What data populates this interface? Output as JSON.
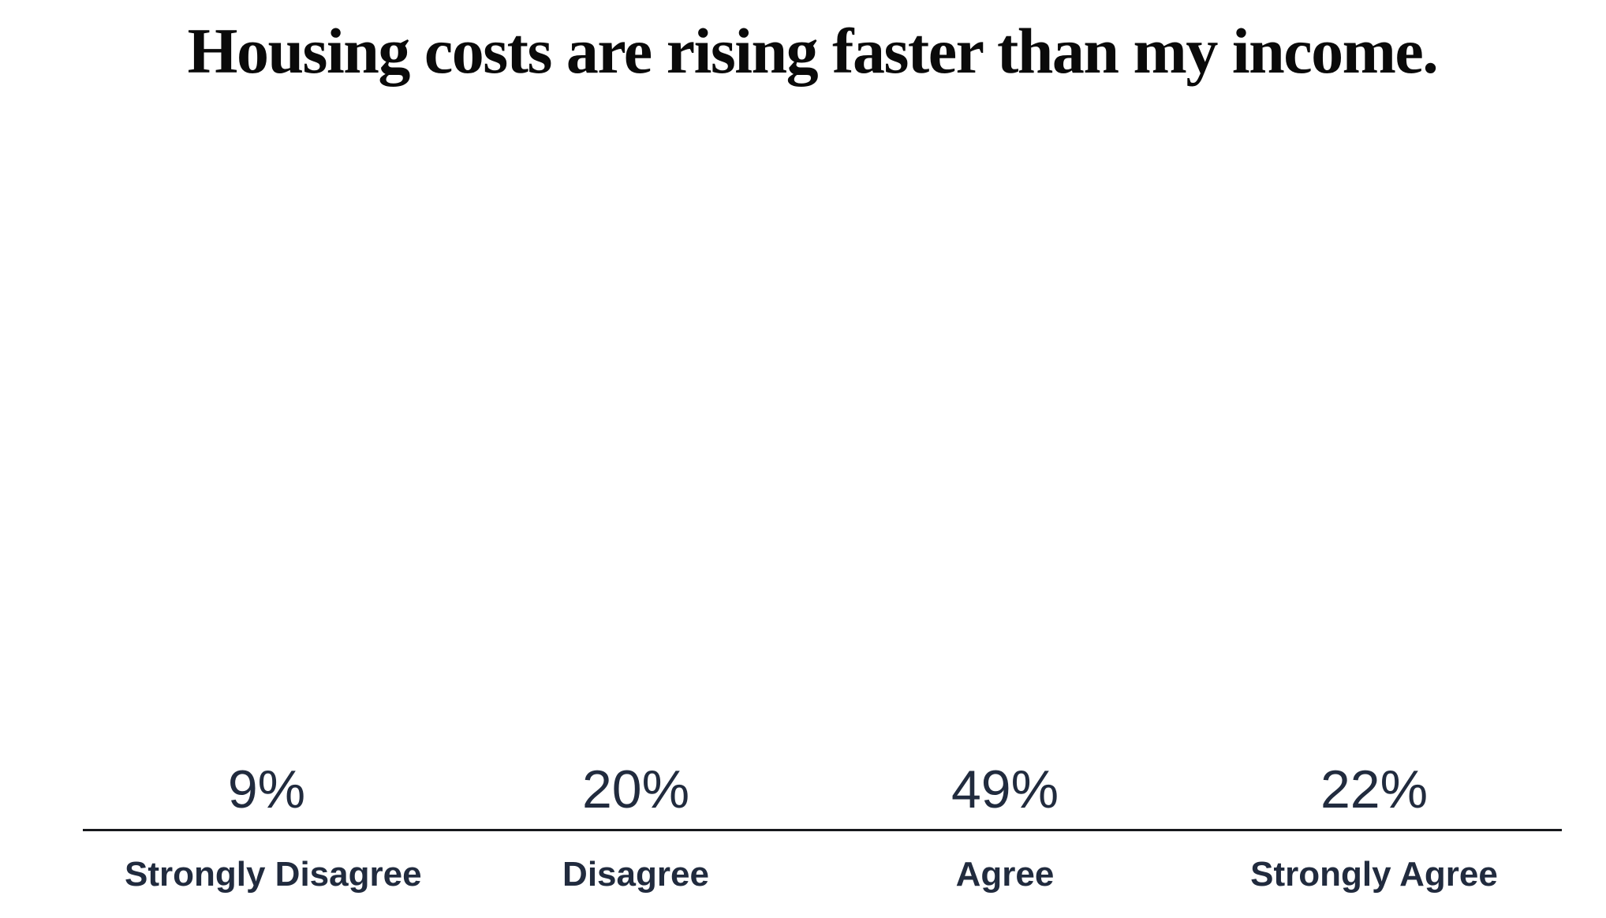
{
  "chart_data": {
    "type": "bar",
    "title": "Housing costs are rising faster than my income.",
    "categories": [
      "Strongly Disagree",
      "Disagree",
      "Agree",
      "Strongly Agree"
    ],
    "values": [
      9,
      20,
      49,
      22
    ],
    "value_labels": [
      "9%",
      "20%",
      "49%",
      "22%"
    ],
    "xlabel": "",
    "ylabel": "",
    "ylim": [
      0,
      52.5
    ],
    "grid": false,
    "legend": false,
    "data_label_position": "above-bar",
    "colors": {
      "bars": [
        "#8BC34C",
        "#5AA867",
        "#43997F",
        "#2787A6"
      ],
      "label_text": "#212B3E",
      "title_text": "#0A0A0A",
      "axis_line": "#17191D",
      "background": "#FFFFFF"
    }
  }
}
